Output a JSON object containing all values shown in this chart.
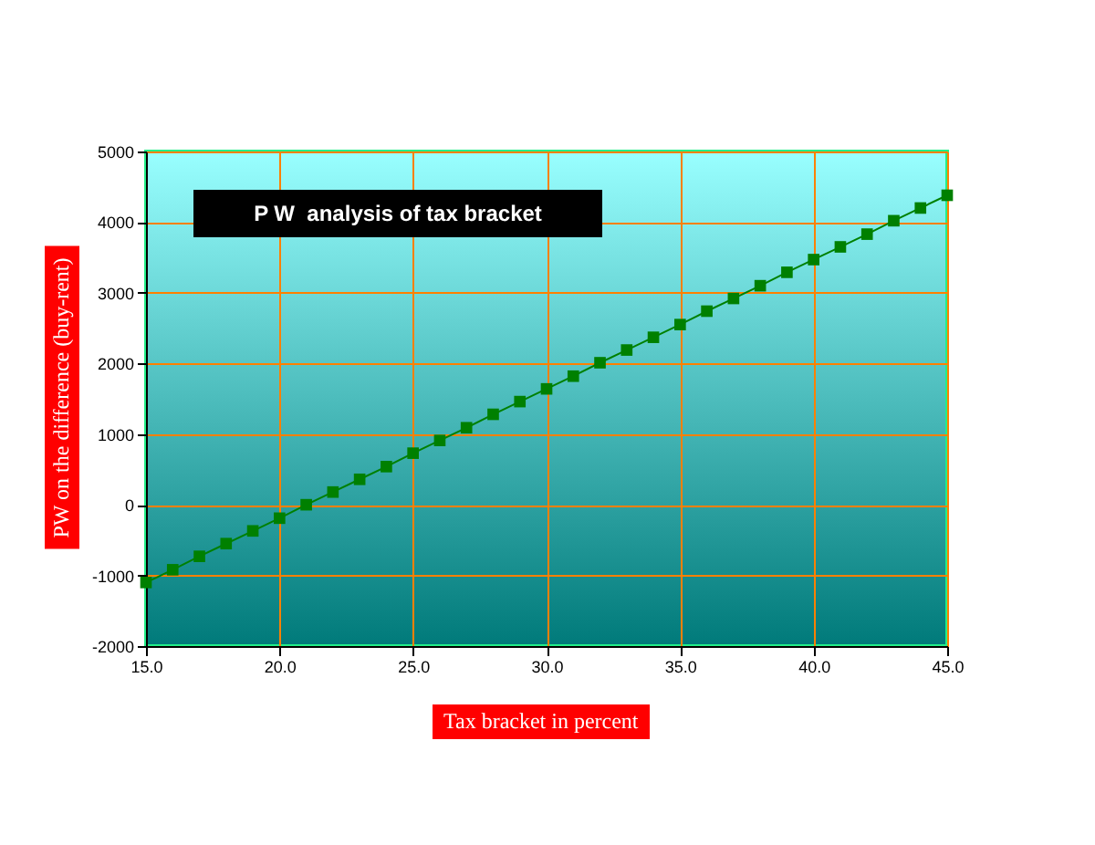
{
  "chart_data": {
    "type": "line",
    "title": "P W  analysis of tax bracket",
    "xlabel": "Tax bracket in percent",
    "ylabel": "PW on the difference (buy-rent)",
    "x": [
      15,
      16,
      17,
      18,
      19,
      20,
      21,
      22,
      23,
      24,
      25,
      26,
      27,
      28,
      29,
      30,
      31,
      32,
      33,
      34,
      35,
      36,
      37,
      38,
      39,
      40,
      41,
      42,
      43,
      44,
      45
    ],
    "series": [
      {
        "color": "#008000",
        "values": [
          -1100,
          -920,
          -730,
          -550,
          -370,
          -190,
          0,
          180,
          360,
          540,
          730,
          910,
          1090,
          1280,
          1460,
          1640,
          1820,
          2010,
          2190,
          2370,
          2550,
          2740,
          2920,
          3100,
          3290,
          3470,
          3650,
          3830,
          4020,
          4200,
          4380
        ]
      }
    ],
    "xlim": [
      15,
      45
    ],
    "xticks": [
      {
        "value": 15,
        "label": "15.0"
      },
      {
        "value": 20,
        "label": "20.0"
      },
      {
        "value": 25,
        "label": "25.0"
      },
      {
        "value": 30,
        "label": "30.0"
      },
      {
        "value": 35,
        "label": "35.0"
      },
      {
        "value": 40,
        "label": "40.0"
      },
      {
        "value": 45,
        "label": "45.0"
      }
    ],
    "ylim": [
      -2000,
      5000
    ],
    "yticks": [
      -2000,
      -1000,
      0,
      1000,
      2000,
      3000,
      4000,
      5000
    ],
    "grid": true,
    "legend": false,
    "marker": "square",
    "line_style": "solid"
  }
}
